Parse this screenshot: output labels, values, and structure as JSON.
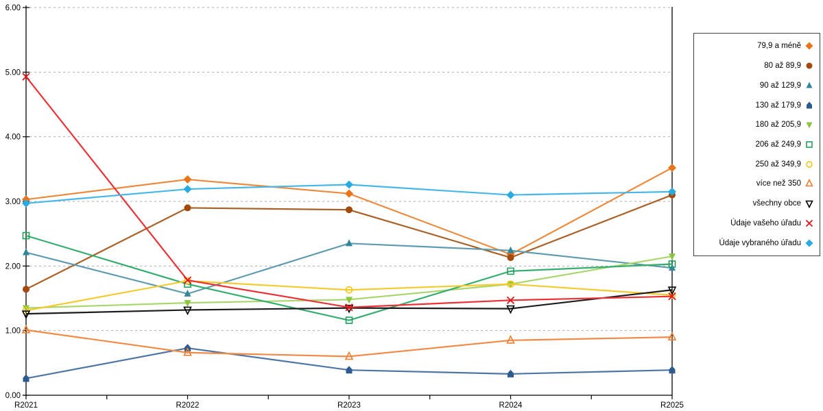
{
  "chart_data": {
    "type": "line",
    "title": "",
    "xlabel": "",
    "ylabel": "",
    "x": [
      "R2021",
      "R2022",
      "R2023",
      "R2024",
      "R2025"
    ],
    "ylim": [
      0,
      6
    ],
    "y_ticks": [
      "0.00",
      "1.00",
      "2.00",
      "3.00",
      "4.00",
      "5.00",
      "6.00"
    ],
    "grid": "horizontal dashed gridlines at each 1.00",
    "legend_position": "right",
    "series": [
      {
        "name": "79,9 a méně",
        "marker": "diamond-filled",
        "color": "#E8751A",
        "line_color": "#EA8A3E",
        "values": [
          3.03,
          3.34,
          3.12,
          2.18,
          3.52
        ]
      },
      {
        "name": "80 až 89,9",
        "marker": "circle-filled",
        "color": "#A3490B",
        "line_color": "#A96127",
        "values": [
          1.64,
          2.9,
          2.87,
          2.13,
          3.1
        ]
      },
      {
        "name": "90 až 129,9",
        "marker": "triangle-up-filled",
        "color": "#31859C",
        "line_color": "#5E9BAE",
        "values": [
          2.21,
          1.57,
          2.35,
          2.24,
          1.97
        ]
      },
      {
        "name": "130 až 179,9",
        "marker": "pentagon-filled",
        "color": "#2E5B8F",
        "line_color": "#4E75A3",
        "values": [
          0.26,
          0.73,
          0.39,
          0.33,
          0.39
        ]
      },
      {
        "name": "180 až 205,9",
        "marker": "triangle-down-filled",
        "color": "#8CC63F",
        "line_color": "#A9D56C",
        "values": [
          1.35,
          1.43,
          1.48,
          1.72,
          2.15
        ]
      },
      {
        "name": "206 až 249,9",
        "marker": "square-open",
        "color": "#1FA05A",
        "line_color": "#35AD6E",
        "values": [
          2.47,
          1.72,
          1.16,
          1.92,
          2.03
        ]
      },
      {
        "name": "250 až 349,9",
        "marker": "circle-open",
        "color": "#F2C512",
        "line_color": "#F3CB2E",
        "values": [
          1.31,
          1.77,
          1.63,
          1.72,
          1.55
        ]
      },
      {
        "name": "více než 350",
        "marker": "triangle-up-open",
        "color": "#ED7D31",
        "line_color": "#F08A46",
        "values": [
          1.01,
          0.66,
          0.6,
          0.85,
          0.9
        ]
      },
      {
        "name": "všechny obce",
        "marker": "triangle-down-open",
        "color": "#000000",
        "line_color": "#1C1C1C",
        "values": [
          1.26,
          1.32,
          1.35,
          1.34,
          1.63
        ]
      },
      {
        "name": "Údaje vašeho úřadu",
        "marker": "x",
        "color": "#E61216",
        "line_color": "#EB3136",
        "values": [
          4.93,
          1.78,
          1.36,
          1.47,
          1.53
        ]
      },
      {
        "name": "Údaje vybraného úřadu",
        "marker": "diamond-filled",
        "color": "#29ABE2",
        "line_color": "#47B7E7",
        "values": [
          2.97,
          3.19,
          3.26,
          3.1,
          3.15
        ]
      }
    ],
    "axis_color": "#000000",
    "gridline_color": "#ABABAB"
  }
}
